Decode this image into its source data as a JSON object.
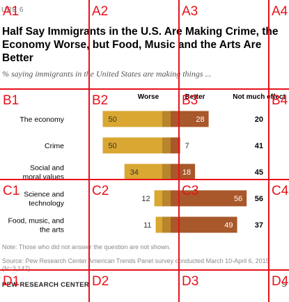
{
  "figure_label": "URE 6",
  "chart_data": {
    "type": "bar",
    "title": "Half Say Immigrants in the U.S. Are Making Crime, the Economy Worse, but Food, Music and the Arts Are Better",
    "subtitle": "% saying immigrants in the United States are making things ...",
    "categories": [
      [
        "The economy"
      ],
      [
        "Crime"
      ],
      [
        "Social and",
        "moral values"
      ],
      [
        "Science and",
        "technology"
      ],
      [
        "Food, music, and",
        "the arts"
      ]
    ],
    "column_headers": [
      "Worse",
      "Better",
      "Not much effect"
    ],
    "series": [
      {
        "name": "Worse",
        "values": [
          50,
          50,
          34,
          12,
          11
        ],
        "color": "#d9a732"
      },
      {
        "name": "Better",
        "values": [
          28,
          7,
          18,
          56,
          49
        ],
        "color": "#a8582a"
      }
    ],
    "not_much_effect": [
      20,
      41,
      45,
      56,
      37
    ],
    "ylim": [
      0,
      100
    ]
  },
  "note": "Note: Those who did not answer the question are not shown.",
  "source": "Source: Pew Research Center American Trends Panel survey conducted March 10-April 6, 2015 (N=3,147)",
  "brand": "PEW RESEARCH CENTER",
  "brand_right": "S",
  "grid": {
    "row_labels": [
      "A",
      "B",
      "C",
      "D"
    ],
    "col_labels": [
      "1",
      "2",
      "3",
      "4"
    ],
    "color": "#e8101a"
  }
}
